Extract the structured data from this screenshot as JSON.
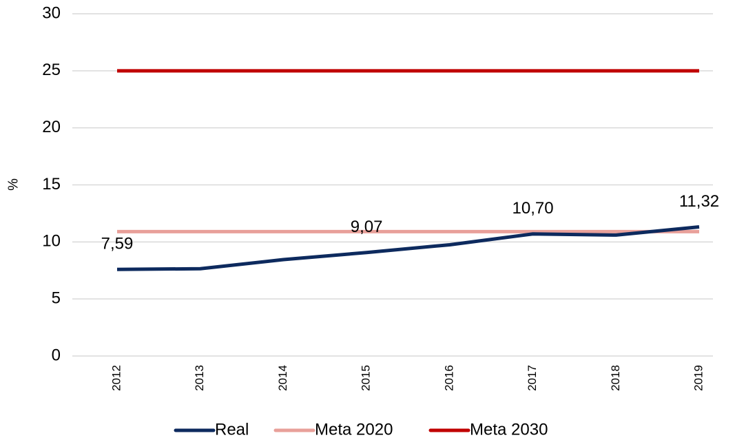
{
  "chart_data": {
    "type": "line",
    "y_label": "%",
    "categories": [
      "2012",
      "2013",
      "2014",
      "2015",
      "2016",
      "2017",
      "2018",
      "2019"
    ],
    "series": [
      {
        "name": "Real",
        "color": "#0d2a5e",
        "values": [
          7.59,
          7.65,
          8.45,
          9.07,
          9.75,
          10.7,
          10.6,
          11.32
        ],
        "value_labels": [
          "7,59",
          null,
          null,
          "9,07",
          null,
          "10,70",
          null,
          "11,32"
        ]
      },
      {
        "name": "Meta 2020",
        "color": "#e8a09a",
        "values": [
          10.9,
          10.9,
          10.9,
          10.9,
          10.9,
          10.9,
          10.9,
          10.9
        ]
      },
      {
        "name": "Meta 2030",
        "color": "#c00000",
        "values": [
          25,
          25,
          25,
          25,
          25,
          25,
          25,
          25
        ]
      }
    ],
    "ylim": [
      0,
      30
    ],
    "yticks": [
      0,
      5,
      10,
      15,
      20,
      25,
      30
    ],
    "grid": true,
    "legend": "bottom"
  }
}
